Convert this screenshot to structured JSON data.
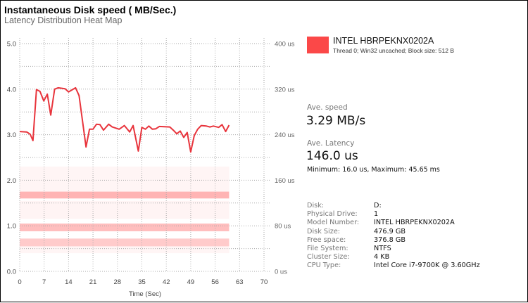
{
  "header": {
    "title": "Instantaneous Disk speed ( MB/Sec.)",
    "subtitle": "Latency Distribution Heat Map"
  },
  "legend": {
    "name": "INTEL HBRPEKNX0202A",
    "description": "Thread 0; Win32 uncached; Block size: 512 B",
    "color": "#fb4848"
  },
  "stats": {
    "speed_label": "Ave. speed",
    "speed_value": "3.29 MB/s",
    "latency_label": "Ave. Latency",
    "latency_value": "146.0 us",
    "minmax": "Minimum: 16.0 us, Maximum: 45.65 ms"
  },
  "info": [
    {
      "key": "Disk:",
      "value": "D:"
    },
    {
      "key": "Physical Drive:",
      "value": "1"
    },
    {
      "key": "Model Number:",
      "value": "INTEL HBRPEKNX0202A"
    },
    {
      "key": "Disk Size:",
      "value": "476.9 GB"
    },
    {
      "key": "Free space:",
      "value": "376.8 GB"
    },
    {
      "key": "File System:",
      "value": "NTFS"
    },
    {
      "key": "Cluster Size:",
      "value": "4 KB"
    },
    {
      "key": "CPU Type:",
      "value": "Intel Core i7-9700K @ 3.60GHz"
    }
  ],
  "chart_data": {
    "type": "line",
    "title": "Instantaneous Disk speed ( MB/Sec.)",
    "subtitle": "Latency Distribution Heat Map",
    "xlabel": "Time (Sec)",
    "ylabel": "MB/Sec.",
    "y2label": "Latency",
    "xlim": [
      0,
      70
    ],
    "ylim": [
      0,
      5
    ],
    "y2lim": [
      0,
      400
    ],
    "grid": true,
    "x_ticks": [
      "0",
      "7",
      "14",
      "21",
      "28",
      "35",
      "42",
      "49",
      "56",
      "63",
      "70"
    ],
    "y_ticks": [
      "0.0",
      "1.0",
      "2.0",
      "3.0",
      "4.0",
      "5.0"
    ],
    "y2_ticks": [
      "0 us",
      "80 us",
      "160 us",
      "240 us",
      "320 us",
      "400 us"
    ],
    "series": [
      {
        "name": "INTEL HBRPEKNX0202A",
        "color": "#e8343c",
        "x": [
          0,
          2,
          3,
          3.8,
          4.8,
          5.8,
          6.9,
          7.9,
          8.9,
          10,
          11,
          13,
          14,
          16,
          17,
          19,
          20,
          21,
          22,
          23,
          24,
          25.5,
          26.5,
          28.5,
          30,
          31.5,
          32.5,
          34,
          35,
          36,
          37,
          38,
          39,
          40,
          43,
          44,
          45,
          46,
          47,
          48,
          49,
          50,
          51,
          52,
          53.5,
          54.5,
          55.5,
          57,
          58,
          59,
          60
        ],
        "y": [
          3.07,
          3.06,
          3.01,
          2.87,
          3.99,
          3.95,
          3.74,
          3.89,
          3.43,
          4.0,
          4.03,
          4.01,
          3.94,
          4.03,
          3.86,
          2.73,
          3.12,
          3.12,
          3.23,
          3.22,
          3.1,
          3.23,
          3.17,
          3.12,
          3.2,
          3.06,
          3.2,
          2.64,
          3.16,
          3.12,
          3.19,
          3.12,
          3.13,
          3.18,
          3.17,
          3.1,
          3.02,
          3.08,
          2.94,
          3.05,
          2.62,
          2.98,
          3.12,
          3.2,
          3.19,
          3.17,
          3.19,
          3.16,
          3.22,
          3.07,
          3.21
        ]
      }
    ],
    "heatmap_bands": [
      {
        "y_from": 0.55,
        "y_to": 0.72,
        "intensity": 0.28
      },
      {
        "y_from": 0.88,
        "y_to": 1.05,
        "intensity": 0.35
      },
      {
        "y_from": 1.15,
        "y_to": 1.55,
        "intensity": 0.06
      },
      {
        "y_from": 1.6,
        "y_to": 1.75,
        "intensity": 0.4
      },
      {
        "y_from": 1.75,
        "y_to": 2.3,
        "intensity": 0.05
      },
      {
        "y_from": 0.4,
        "y_to": 0.55,
        "intensity": 0.05
      }
    ],
    "heatmap_xlim": [
      0,
      60
    ]
  }
}
